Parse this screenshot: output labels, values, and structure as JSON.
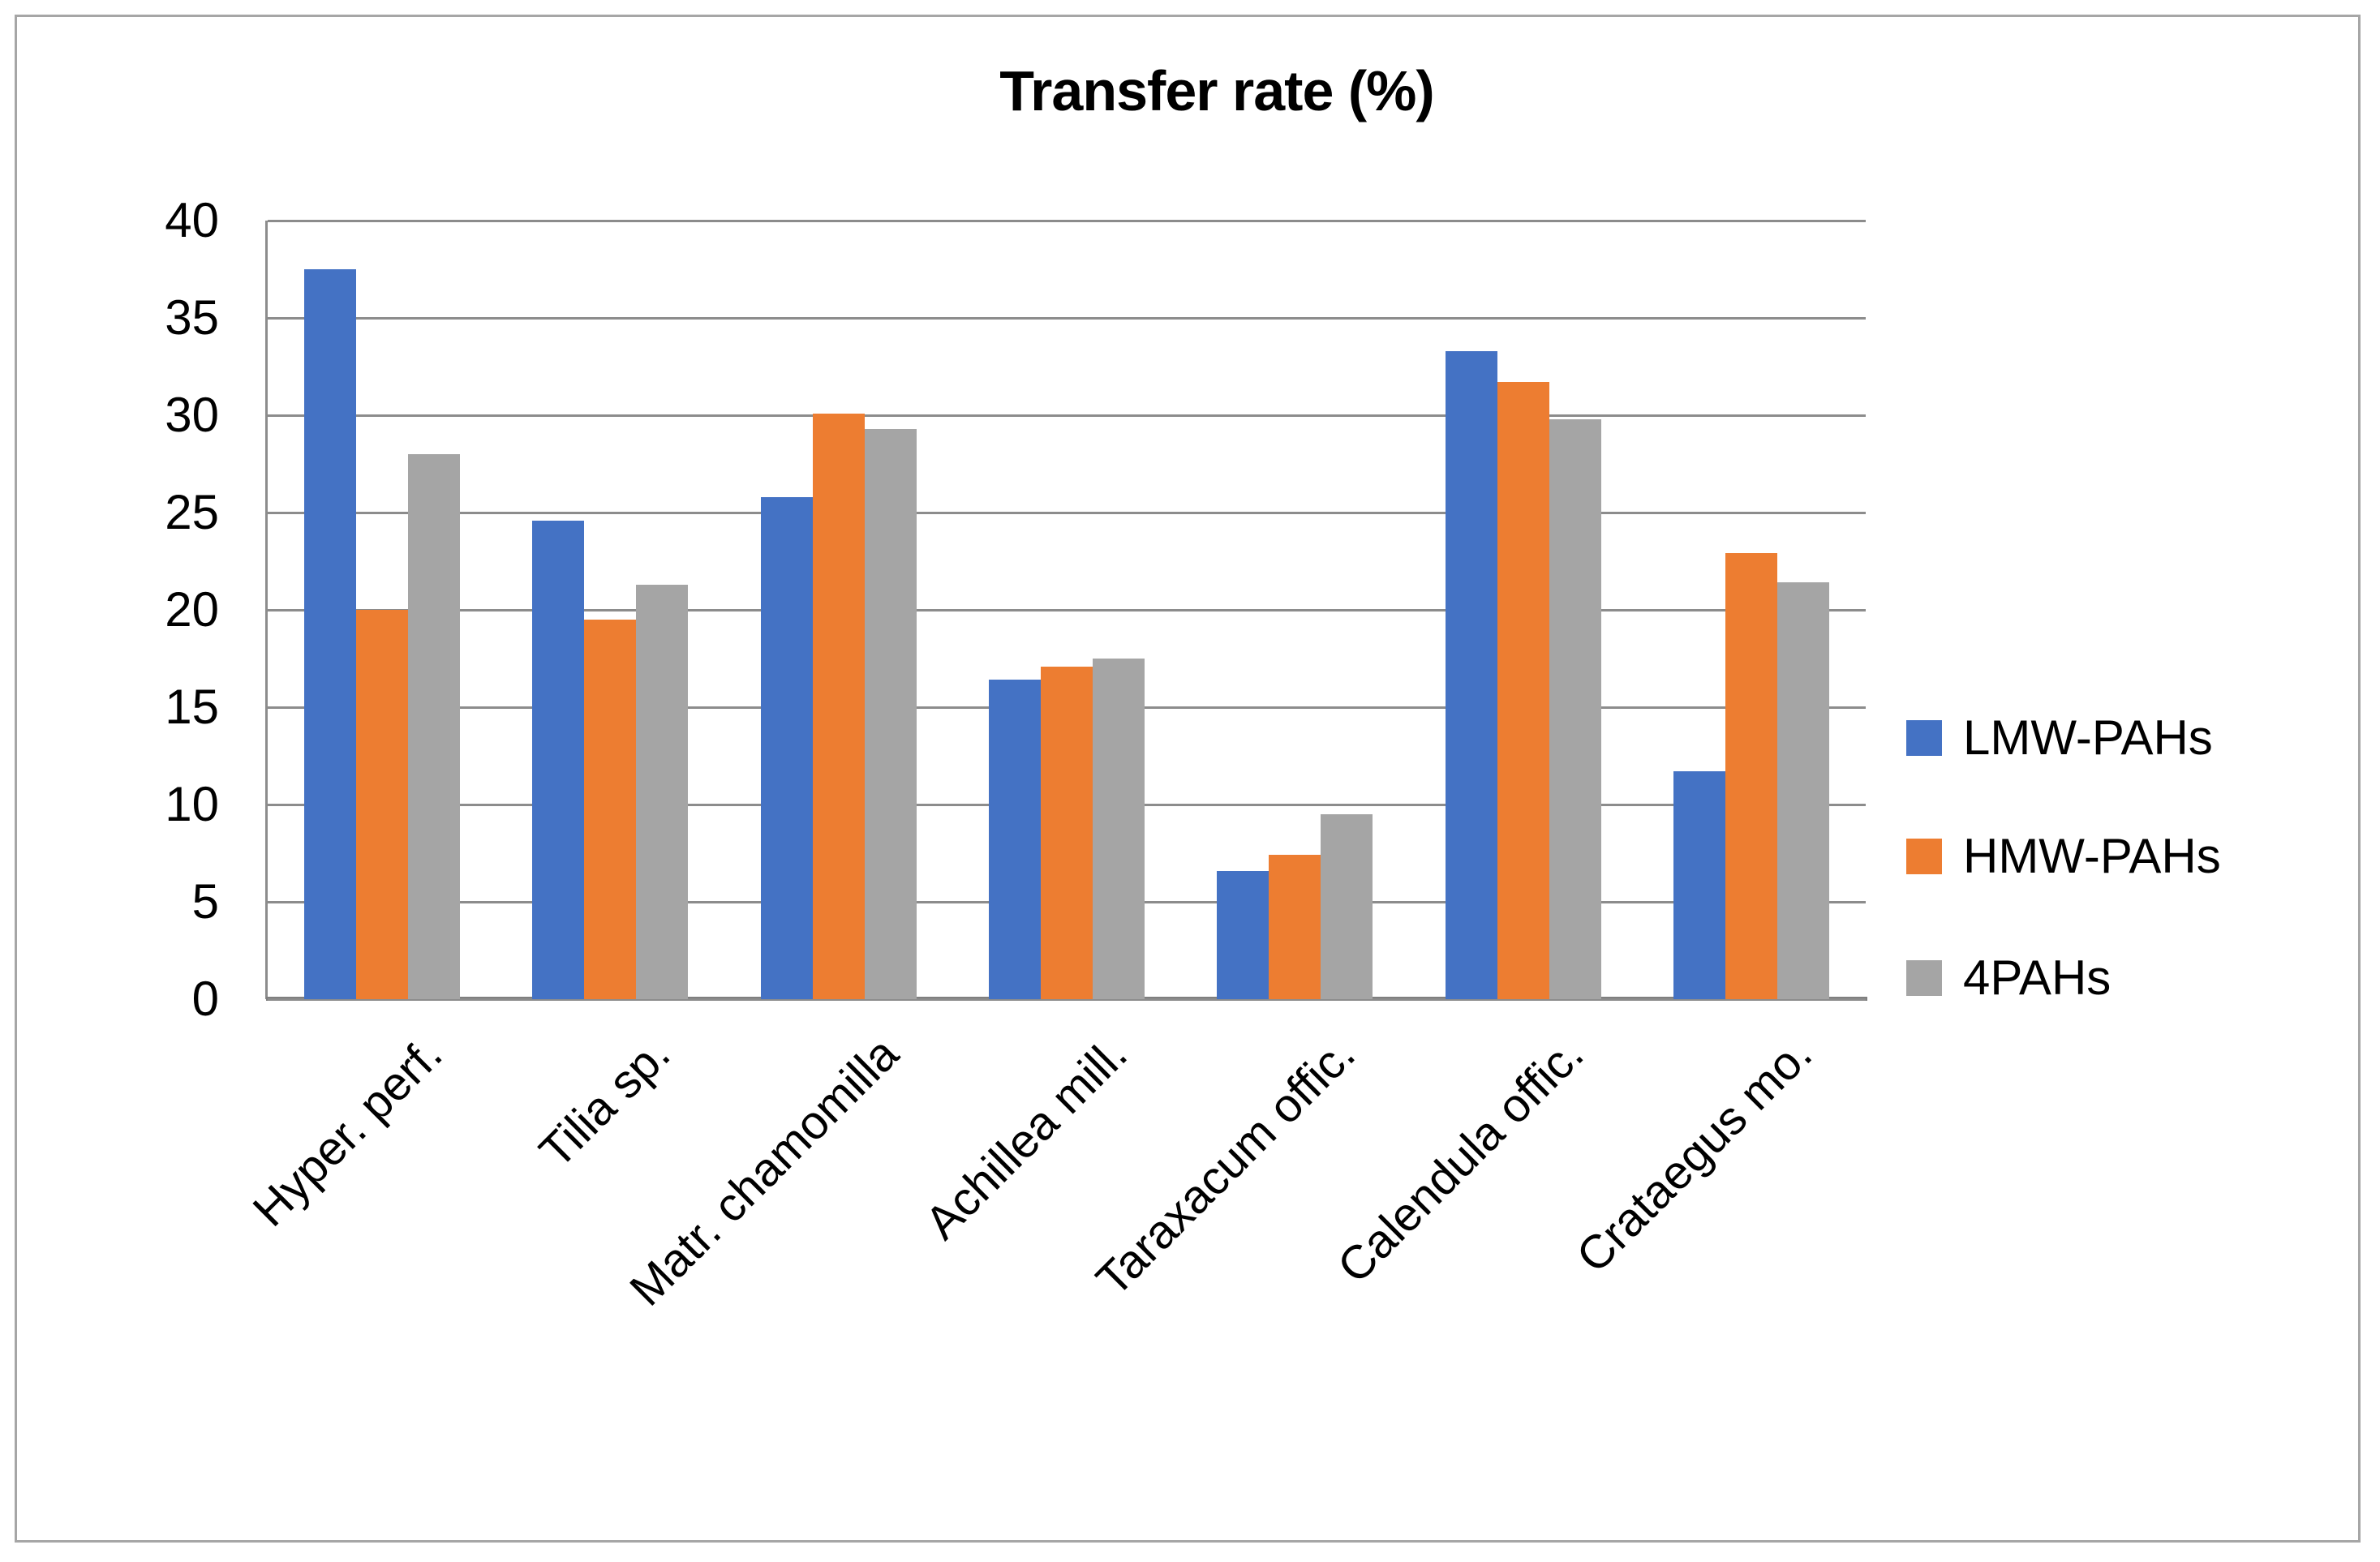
{
  "title": "Transfer rate (%)",
  "chart_data": {
    "type": "bar",
    "title": "Transfer rate (%)",
    "categories": [
      "Hyper. perf.",
      "Tilia sp.",
      "Matr. chamomilla",
      "Achillea mill.",
      "Taraxacum offic.",
      "Calendula offic.",
      "Crataegus mo."
    ],
    "series": [
      {
        "name": "LMW-PAHs",
        "color": "#4472C4",
        "values": [
          37.5,
          24.6,
          25.8,
          16.4,
          6.6,
          33.3,
          11.7
        ]
      },
      {
        "name": "HMW-PAHs",
        "color": "#ED7D31",
        "values": [
          20.0,
          19.5,
          30.1,
          17.1,
          7.4,
          31.7,
          22.9
        ]
      },
      {
        "name": "4PAHs",
        "color": "#A5A5A5",
        "values": [
          28.0,
          21.3,
          29.3,
          17.5,
          9.5,
          29.8,
          21.4
        ]
      }
    ],
    "xlabel": "",
    "ylabel": "",
    "ylim": [
      0,
      40
    ],
    "yticks": [
      0,
      5,
      10,
      15,
      20,
      25,
      30,
      35,
      40
    ],
    "grid": true,
    "legend_position": "right",
    "x_label_rotation_deg": 45
  },
  "colors": {
    "gridline": "#8c8c8c",
    "axis": "#7f7f7f",
    "border": "#a6a6a6",
    "background": "#ffffff",
    "text": "#000000"
  }
}
